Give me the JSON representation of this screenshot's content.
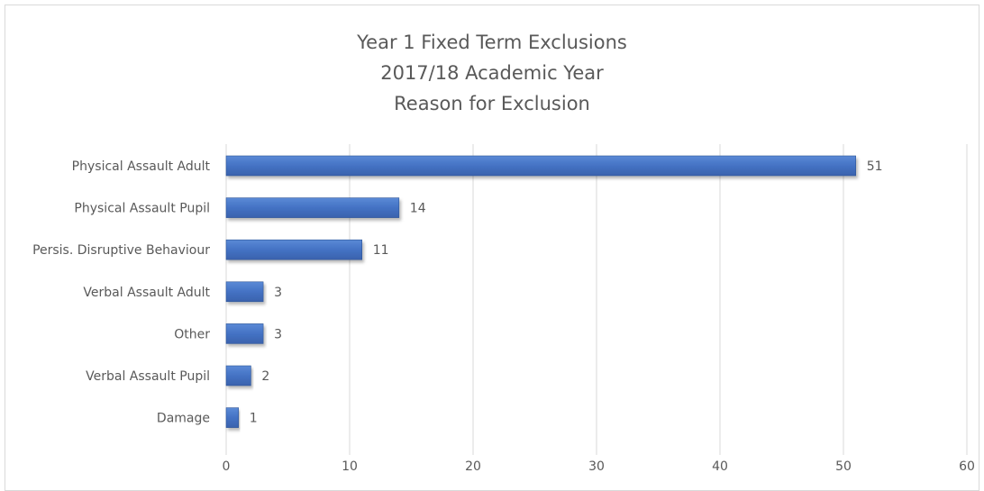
{
  "chart_data": {
    "type": "bar",
    "orientation": "horizontal",
    "title_lines": [
      "Year 1 Fixed Term Exclusions",
      "2017/18 Academic Year",
      "Reason for Exclusion"
    ],
    "categories": [
      "Physical Assault Adult",
      "Physical Assault Pupil",
      "Persis. Disruptive Behaviour",
      "Verbal Assault Adult",
      "Other",
      "Verbal Assault Pupil",
      "Damage"
    ],
    "values": [
      51,
      14,
      11,
      3,
      3,
      2,
      1
    ],
    "xlim": [
      0,
      60
    ],
    "x_ticks": [
      0,
      10,
      20,
      30,
      40,
      50,
      60
    ],
    "grid": true,
    "legend": "none",
    "bar_color": "#4472c4"
  }
}
